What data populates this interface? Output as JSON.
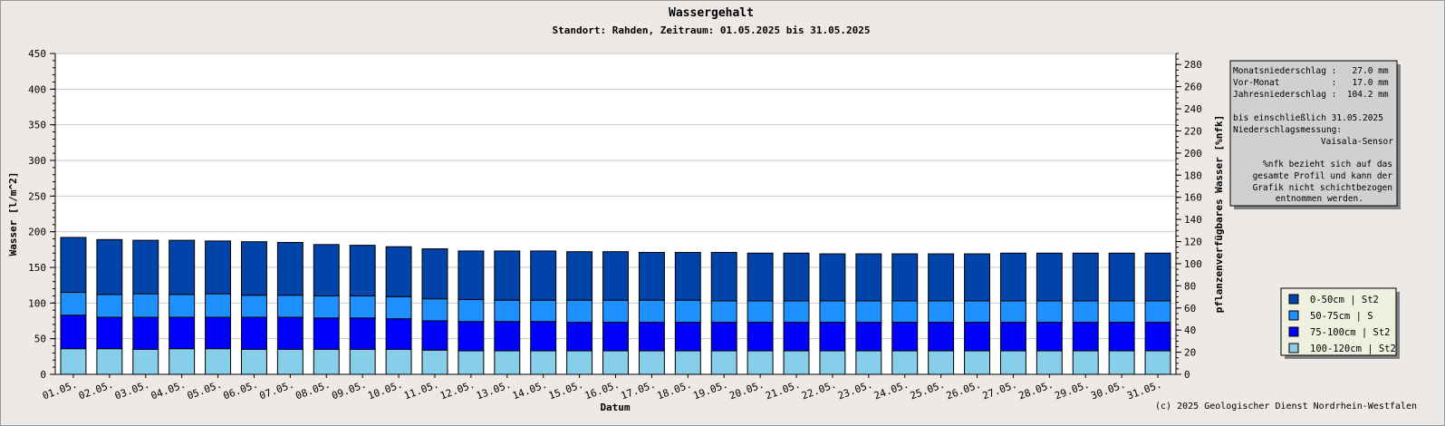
{
  "chart_data": {
    "type": "bar",
    "stacked": true,
    "title": "Wassergehalt",
    "subtitle": "Standort: Rahden, Zeitraum: 01.05.2025 bis 31.05.2025",
    "xlabel": "Datum",
    "ylabel": "Wasser [l/m^2]",
    "y2label": "pflanzenverfügbares Wasser [%nfk]",
    "ylim": [
      0,
      450
    ],
    "y2lim": [
      0,
      290
    ],
    "yticks": [
      "0",
      "50",
      "100",
      "150",
      "200",
      "250",
      "300",
      "350",
      "400",
      "450"
    ],
    "y2ticks": [
      "0",
      "20",
      "40",
      "60",
      "80",
      "100",
      "120",
      "140",
      "160",
      "180",
      "200",
      "220",
      "240",
      "260",
      "280"
    ],
    "grid": true,
    "legend_position": "right",
    "categories": [
      "01.05.",
      "02.05.",
      "03.05.",
      "04.05.",
      "05.05.",
      "06.05.",
      "07.05.",
      "08.05.",
      "09.05.",
      "10.05.",
      "11.05.",
      "12.05.",
      "13.05.",
      "14.05.",
      "15.05.",
      "16.05.",
      "17.05.",
      "18.05.",
      "19.05.",
      "20.05.",
      "21.05.",
      "22.05.",
      "23.05.",
      "24.05.",
      "25.05.",
      "26.05.",
      "27.05.",
      "28.05.",
      "29.05.",
      "30.05.",
      "31.05."
    ],
    "series": [
      {
        "name": "100-120cm | St2",
        "color": "#87ceeb",
        "values": [
          36,
          36,
          35,
          36,
          36,
          35,
          35,
          35,
          35,
          35,
          34,
          33,
          33,
          33,
          33,
          33,
          33,
          33,
          33,
          33,
          33,
          33,
          33,
          33,
          33,
          33,
          33,
          33,
          33,
          33,
          33
        ]
      },
      {
        "name": "75-100cm | St2",
        "color": "#0000ff",
        "values": [
          47,
          44,
          45,
          44,
          44,
          45,
          45,
          44,
          44,
          43,
          41,
          41,
          41,
          41,
          40,
          40,
          40,
          40,
          40,
          40,
          40,
          40,
          40,
          40,
          40,
          40,
          40,
          40,
          40,
          40,
          40
        ]
      },
      {
        "name": "50-75cm | S",
        "color": "#1e90ff",
        "values": [
          32,
          32,
          33,
          32,
          33,
          31,
          31,
          31,
          31,
          31,
          31,
          31,
          30,
          30,
          31,
          31,
          31,
          31,
          30,
          30,
          30,
          30,
          30,
          30,
          30,
          30,
          30,
          30,
          30,
          30,
          30
        ]
      },
      {
        "name": "0-50cm | St2",
        "color": "#0044aa",
        "values": [
          77,
          77,
          75,
          76,
          74,
          75,
          74,
          72,
          71,
          70,
          70,
          68,
          69,
          69,
          68,
          68,
          67,
          67,
          68,
          67,
          67,
          66,
          66,
          66,
          66,
          66,
          67,
          67,
          67,
          67,
          67
        ]
      }
    ],
    "legend": [
      "0-50cm | St2",
      "50-75cm | S",
      "75-100cm | St2",
      "100-120cm | St2"
    ]
  },
  "info_box": {
    "lines": [
      "Monatsniederschlag :   27.0 mm",
      "Vor-Monat          :   17.0 mm",
      "Jahresniederschlag :  104.2 mm",
      "",
      "bis einschließlich 31.05.2025",
      "Niederschlagsmessung:"
    ],
    "sensor": "Vaisala-Sensor",
    "note": [
      "%nfk bezieht sich auf das",
      "gesamte Profil und kann der",
      "Grafik nicht schichtbezogen",
      "entnommen werden."
    ]
  },
  "copyright": "(c) 2025 Geologischer Dienst Nordrhein-Westfalen",
  "colors": {
    "background": "#ede9e7",
    "plot_bg": "#ffffff",
    "grid": "#c8c8c8",
    "infobox_bg": "#d0d0d0",
    "legend_bg": "#f0f0e0"
  }
}
